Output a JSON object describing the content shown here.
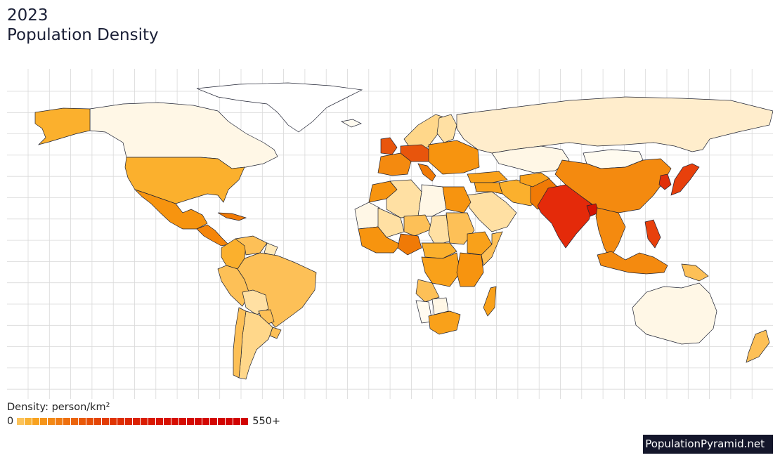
{
  "header": {
    "year": "2023",
    "title": "Population Density"
  },
  "legend": {
    "title": "Density: person/km²",
    "min_label": "0",
    "max_label": "550+",
    "colors": [
      "#fcc35a",
      "#f9b234",
      "#f8a21f",
      "#f5951a",
      "#f38916",
      "#f07c12",
      "#ee700f",
      "#eb640c",
      "#e95909",
      "#e64e07",
      "#e44506",
      "#e23c05",
      "#e03404",
      "#de2d03",
      "#dc2703",
      "#db2103",
      "#da1c02",
      "#d91802",
      "#d81402",
      "#d71102",
      "#d60e02",
      "#d50c02",
      "#d40a02",
      "#d40802",
      "#d30702",
      "#d30602",
      "#d20502",
      "#d20402",
      "#d10302",
      "#d10202"
    ]
  },
  "map": {
    "ocean_color": "#ffffff",
    "grid_color": "#d9d9d9",
    "border_color": "#1f2232",
    "regions": [
      {
        "name": "Greenland",
        "color": "#ffffff"
      },
      {
        "name": "Canada",
        "color": "#fff7e6"
      },
      {
        "name": "Alaska",
        "color": "#fbb02d"
      },
      {
        "name": "United States",
        "color": "#fbb02d"
      },
      {
        "name": "Mexico",
        "color": "#f7940f"
      },
      {
        "name": "Central America",
        "color": "#f5850a"
      },
      {
        "name": "Caribbean",
        "color": "#f07a06"
      },
      {
        "name": "Colombia",
        "color": "#fbb02d"
      },
      {
        "name": "Venezuela",
        "color": "#fdc057"
      },
      {
        "name": "Guiana",
        "color": "#ffe9b8"
      },
      {
        "name": "Peru",
        "color": "#fdc057"
      },
      {
        "name": "Brazil",
        "color": "#fdc057"
      },
      {
        "name": "Bolivia",
        "color": "#ffe0a3"
      },
      {
        "name": "Paraguay",
        "color": "#fdc057"
      },
      {
        "name": "Argentina",
        "color": "#ffd78a"
      },
      {
        "name": "Chile",
        "color": "#fdc057"
      },
      {
        "name": "Uruguay",
        "color": "#fdc057"
      },
      {
        "name": "Iceland",
        "color": "#fffbf0"
      },
      {
        "name": "Scandinavia",
        "color": "#ffd78a"
      },
      {
        "name": "Finland",
        "color": "#ffe0a3"
      },
      {
        "name": "United Kingdom",
        "color": "#e8550c"
      },
      {
        "name": "Western Europe",
        "color": "#f48a0f"
      },
      {
        "name": "Benelux",
        "color": "#e8550c"
      },
      {
        "name": "Eastern Europe",
        "color": "#f7940f"
      },
      {
        "name": "Italy",
        "color": "#f07a06"
      },
      {
        "name": "Turkey",
        "color": "#f9a11a"
      },
      {
        "name": "Russia",
        "color": "#ffedcc"
      },
      {
        "name": "Kazakhstan",
        "color": "#fff7e6"
      },
      {
        "name": "Mongolia",
        "color": "#fffbf0"
      },
      {
        "name": "China",
        "color": "#f48a0f"
      },
      {
        "name": "Korea",
        "color": "#e0300a"
      },
      {
        "name": "Japan",
        "color": "#e8400c"
      },
      {
        "name": "Iran",
        "color": "#fbb02d"
      },
      {
        "name": "Saudi Arabia",
        "color": "#ffe0a3"
      },
      {
        "name": "Middle East",
        "color": "#f9a11a"
      },
      {
        "name": "Pakistan",
        "color": "#f07a06"
      },
      {
        "name": "Afghanistan",
        "color": "#f9a11a"
      },
      {
        "name": "India",
        "color": "#e42a0a"
      },
      {
        "name": "Bangladesh",
        "color": "#d41202"
      },
      {
        "name": "Southeast Asia",
        "color": "#f48a0f"
      },
      {
        "name": "Philippines",
        "color": "#e8400c"
      },
      {
        "name": "Indonesia",
        "color": "#f48a0f"
      },
      {
        "name": "Papua New Guinea",
        "color": "#fdc057"
      },
      {
        "name": "Australia",
        "color": "#fff7e6"
      },
      {
        "name": "New Zealand",
        "color": "#fdc057"
      },
      {
        "name": "Morocco",
        "color": "#f7940f"
      },
      {
        "name": "Algeria",
        "color": "#ffe0a3"
      },
      {
        "name": "Libya",
        "color": "#fff7e6"
      },
      {
        "name": "Egypt",
        "color": "#f7940f"
      },
      {
        "name": "Mauritania",
        "color": "#fff7e6"
      },
      {
        "name": "Mali",
        "color": "#ffe0a3"
      },
      {
        "name": "Niger",
        "color": "#fdc057"
      },
      {
        "name": "Chad",
        "color": "#ffe0a3"
      },
      {
        "name": "Sudan",
        "color": "#fdc057"
      },
      {
        "name": "West Africa",
        "color": "#f7940f"
      },
      {
        "name": "Nigeria",
        "color": "#f07a06"
      },
      {
        "name": "Ethiopia",
        "color": "#f9a11a"
      },
      {
        "name": "Somalia",
        "color": "#fdc057"
      },
      {
        "name": "Central Africa",
        "color": "#fbb02d"
      },
      {
        "name": "DR Congo",
        "color": "#f9a11a"
      },
      {
        "name": "East Africa",
        "color": "#f7940f"
      },
      {
        "name": "Angola",
        "color": "#fdc057"
      },
      {
        "name": "Namibia",
        "color": "#fffbf0"
      },
      {
        "name": "Botswana",
        "color": "#fff7e6"
      },
      {
        "name": "South Africa",
        "color": "#f9a11a"
      },
      {
        "name": "Madagascar",
        "color": "#f9a11a"
      }
    ]
  },
  "brand": {
    "label": "PopulationPyramid.net"
  }
}
